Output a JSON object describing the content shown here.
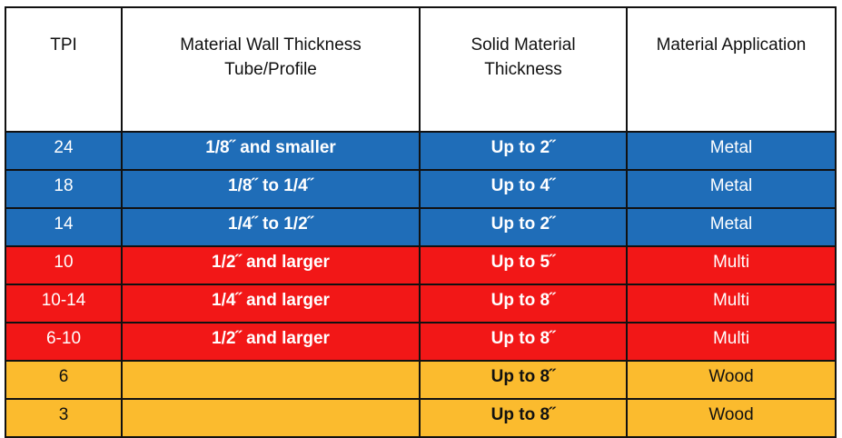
{
  "colors": {
    "metal": "#1f6db8",
    "multi": "#f21717",
    "wood": "#fbbb2e"
  },
  "headers": {
    "tpi": "TPI",
    "wall_line1": "Material Wall Thickness",
    "wall_line2": "Tube/Profile",
    "solid_line1": "Solid Material",
    "solid_line2": "Thickness",
    "application": "Material Application"
  },
  "rows": [
    {
      "tpi": "24",
      "wall": "1/8˝ and smaller",
      "solid": "Up to 2˝",
      "application": "Metal"
    },
    {
      "tpi": "18",
      "wall": "1/8˝ to 1/4˝",
      "solid": "Up to 4˝",
      "application": "Metal"
    },
    {
      "tpi": "14",
      "wall": "1/4˝ to 1/2˝",
      "solid": "Up to 2˝",
      "application": "Metal"
    },
    {
      "tpi": "10",
      "wall": "1/2˝ and larger",
      "solid": "Up to 5˝",
      "application": "Multi"
    },
    {
      "tpi": "10-14",
      "wall": "1/4˝ and larger",
      "solid": "Up to 8˝",
      "application": "Multi"
    },
    {
      "tpi": "6-10",
      "wall": "1/2˝ and larger",
      "solid": "Up to 8˝",
      "application": "Multi"
    },
    {
      "tpi": "6",
      "wall": "",
      "solid": "Up to 8˝",
      "application": "Wood"
    },
    {
      "tpi": "3",
      "wall": "",
      "solid": "Up to 8˝",
      "application": "Wood"
    }
  ]
}
